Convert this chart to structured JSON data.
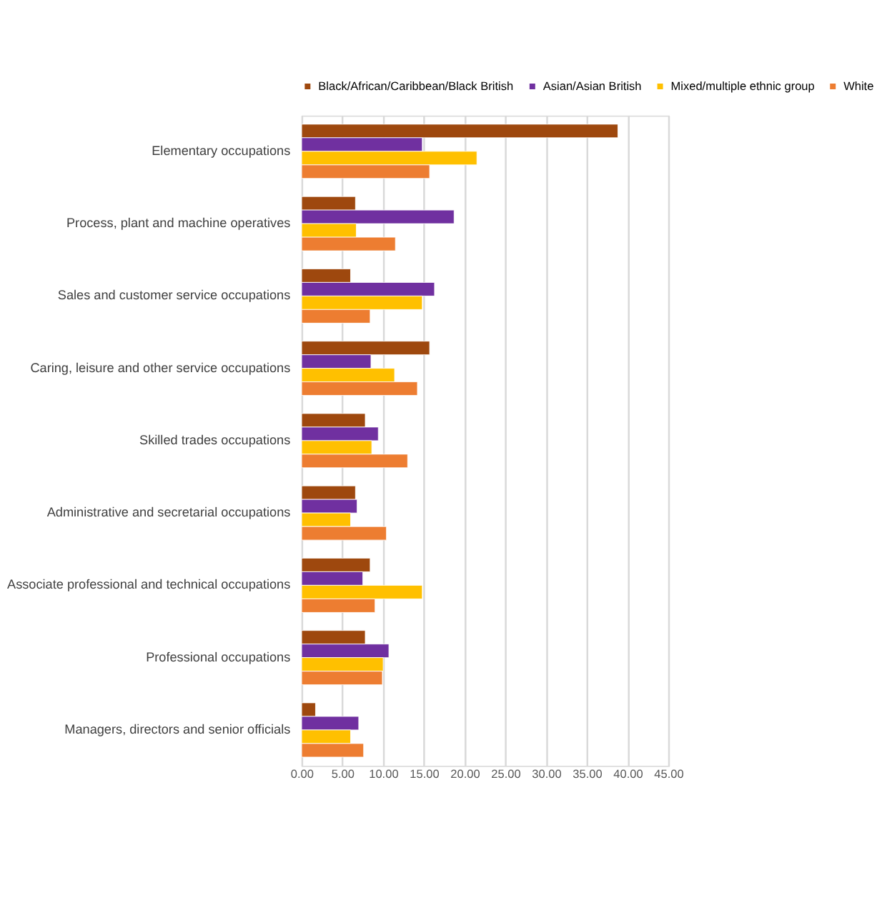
{
  "chart_data": {
    "type": "bar",
    "orientation": "horizontal",
    "categories": [
      "Elementary occupations",
      "Process, plant and machine operatives",
      "Sales and customer service occupations",
      "Caring, leisure and other service occupations",
      "Skilled trades occupations",
      "Administrative and secretarial occupations",
      "Associate professional and technical occupations",
      "Professional occupations",
      "Managers, directors and senior officials"
    ],
    "series": [
      {
        "name": "Black/African/Caribbean/Black British",
        "color": "#9e480e",
        "values": [
          38.8,
          6.6,
          6.0,
          15.7,
          7.8,
          6.6,
          8.4,
          7.8,
          1.7
        ]
      },
      {
        "name": "Asian/Asian British",
        "color": "#7030a0",
        "values": [
          14.8,
          18.7,
          16.3,
          8.5,
          9.4,
          6.8,
          7.5,
          10.7,
          7.0
        ]
      },
      {
        "name": "Mixed/multiple ethnic group",
        "color": "#ffc000",
        "values": [
          21.5,
          6.7,
          14.8,
          11.4,
          8.6,
          6.0,
          14.8,
          10.0,
          6.0
        ]
      },
      {
        "name": "White",
        "color": "#ed7d31",
        "values": [
          15.7,
          11.5,
          8.4,
          14.2,
          13.0,
          10.4,
          9.0,
          9.9,
          7.6
        ]
      }
    ],
    "xlim": [
      0,
      45
    ],
    "xticks": [
      {
        "value": 0,
        "label": "0.00"
      },
      {
        "value": 5,
        "label": "5.00"
      },
      {
        "value": 10,
        "label": "10.00"
      },
      {
        "value": 15,
        "label": "15.00"
      },
      {
        "value": 20,
        "label": "20.00"
      },
      {
        "value": 25,
        "label": "25.00"
      },
      {
        "value": 30,
        "label": "30.00"
      },
      {
        "value": 35,
        "label": "35.00"
      },
      {
        "value": 40,
        "label": "40.00"
      },
      {
        "value": 45,
        "label": "45.00"
      }
    ],
    "grid": "x",
    "legend": "top"
  }
}
